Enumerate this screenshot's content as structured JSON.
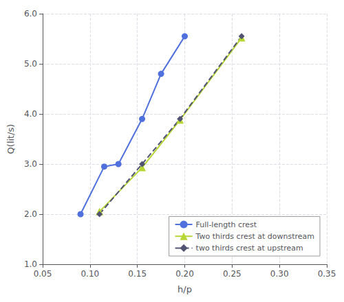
{
  "chart_data": {
    "type": "line",
    "xlabel": "h/p",
    "ylabel": "Q(lit/s)",
    "series": [
      {
        "name": "Full-length crest",
        "x": [
          0.09,
          0.115,
          0.13,
          0.155,
          0.175,
          0.2
        ],
        "values": [
          2.0,
          2.95,
          3.0,
          3.9,
          4.8,
          5.55
        ],
        "marker": "circle",
        "line_style": "solid"
      },
      {
        "name": "Two thirds crest at downstream",
        "x": [
          0.11,
          0.155,
          0.195,
          0.26
        ],
        "values": [
          2.05,
          2.93,
          3.88,
          5.52
        ],
        "marker": "triangle",
        "line_style": "solid"
      },
      {
        "name": "two thirds crest at upstream",
        "x": [
          0.11,
          0.155,
          0.195,
          0.26
        ],
        "values": [
          2.0,
          3.0,
          3.9,
          5.55
        ],
        "marker": "diamond",
        "line_style": "dashed"
      }
    ],
    "xlim": [
      0.05,
      0.35
    ],
    "ylim": [
      1.0,
      6.0
    ],
    "xticks": [
      0.05,
      {
        "value": 0.1,
        "label": "0.10"
      },
      0.15,
      {
        "value": 0.2,
        "label": "0.20"
      },
      0.25,
      {
        "value": 0.3,
        "label": "0.30"
      },
      0.35
    ],
    "yticks": [
      {
        "value": 1.0,
        "label": "1.0"
      },
      {
        "value": 2.0,
        "label": "2.0"
      },
      {
        "value": 3.0,
        "label": "3.0"
      },
      {
        "value": 4.0,
        "label": "4.0"
      },
      {
        "value": 5.0,
        "label": "5.0"
      },
      {
        "value": 6.0,
        "label": "6.0"
      }
    ],
    "grid": true,
    "legend": "lower right"
  }
}
